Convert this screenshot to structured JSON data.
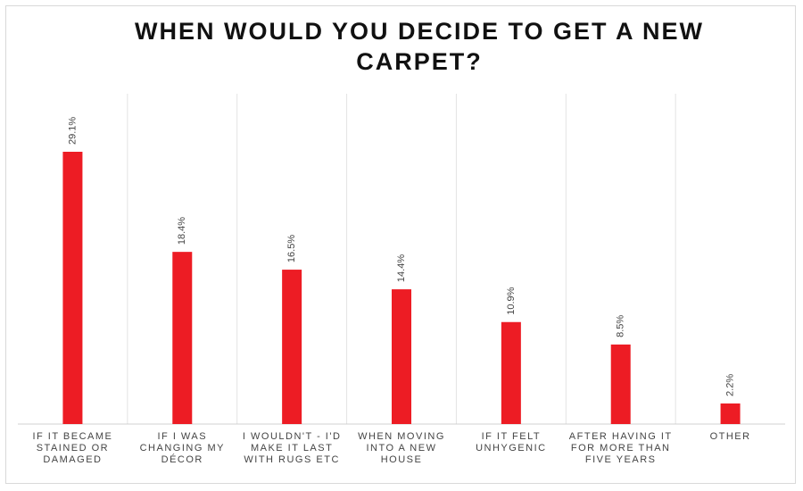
{
  "chart_data": {
    "type": "bar",
    "title": "WHEN WOULD YOU DECIDE TO GET A NEW CARPET?",
    "categories": [
      "IF IT BECAME STAINED OR DAMAGED",
      "IF I WAS CHANGING MY DÉCOR",
      "I WOULDN'T - I'D MAKE IT LAST WITH RUGS ETC",
      "WHEN MOVING INTO A NEW HOUSE",
      "IF IT FELT UNHYGENIC",
      "AFTER HAVING IT FOR MORE THAN FIVE YEARS",
      "OTHER"
    ],
    "values": [
      29.1,
      18.4,
      16.5,
      14.4,
      10.9,
      8.5,
      2.2
    ],
    "value_labels": [
      "29.1%",
      "18.4%",
      "16.5%",
      "14.4%",
      "10.9%",
      "8.5%",
      "2.2%"
    ],
    "color": "#ed1c24",
    "grid": true
  }
}
